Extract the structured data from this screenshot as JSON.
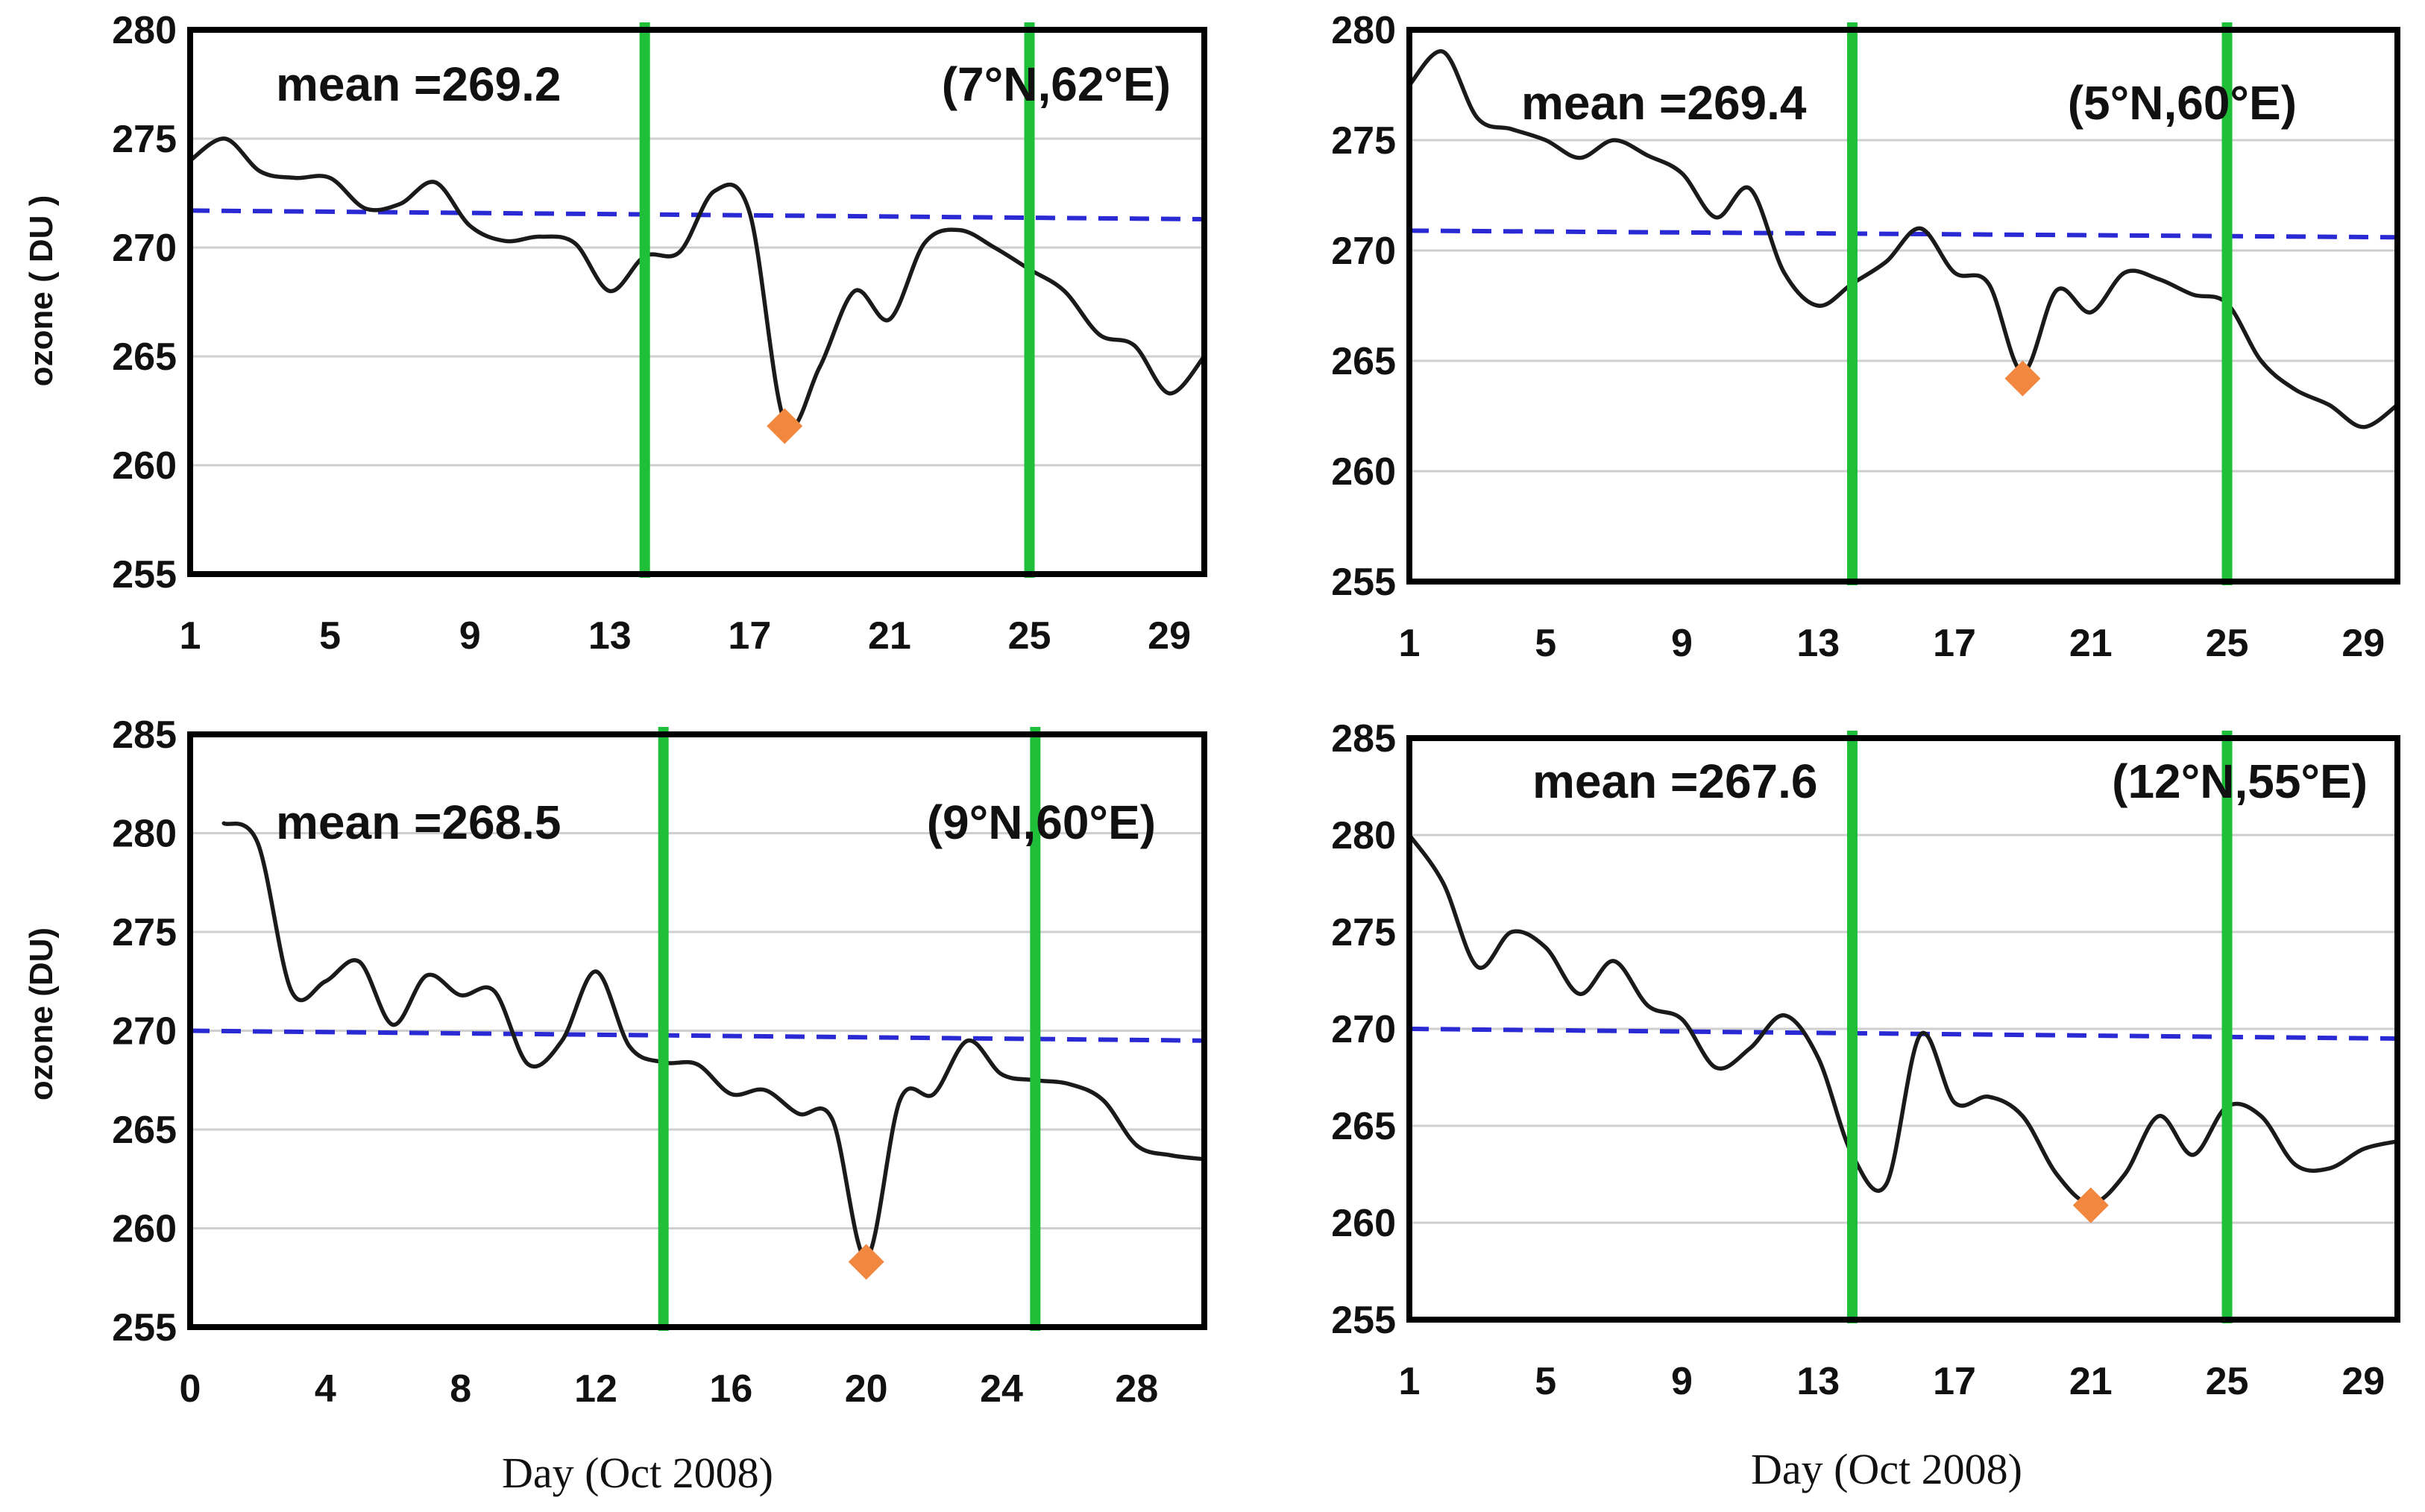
{
  "chart_data": [
    {
      "type": "line",
      "panel": "top-left",
      "mean_label": "mean =269.2",
      "location": "(7°N,62°E)",
      "ylabel": "ozone ( DU )",
      "xlabel": "",
      "xlim": [
        1,
        30
      ],
      "ylim": [
        255,
        280
      ],
      "yticks": [
        255,
        260,
        265,
        270,
        275,
        280
      ],
      "xticks": [
        1,
        5,
        9,
        13,
        17,
        21,
        25,
        29
      ],
      "series": {
        "name": "ozone",
        "x": [
          1,
          2,
          3,
          4,
          5,
          6,
          7,
          8,
          9,
          10,
          11,
          12,
          13,
          14,
          15,
          16,
          17,
          18,
          19,
          20,
          21,
          22,
          23,
          24,
          25,
          26,
          27,
          28,
          29,
          30
        ],
        "y": [
          274,
          275,
          273.5,
          273.2,
          273.2,
          271.8,
          272,
          273,
          271,
          270.3,
          270.5,
          270.2,
          268,
          269.6,
          269.8,
          272.6,
          271.6,
          262,
          264.5,
          268,
          266.7,
          270.2,
          270.8,
          270,
          269,
          268,
          266,
          265.5,
          263.3,
          265
        ]
      },
      "mean_line": [
        271.7,
        271.3
      ],
      "minimum": {
        "x": 18,
        "y": 261.8
      },
      "vlines": [
        14,
        25
      ]
    },
    {
      "type": "line",
      "panel": "top-right",
      "mean_label": "mean =269.4",
      "location": "(5°N,60°E)",
      "ylabel": "",
      "xlabel": "",
      "xlim": [
        1,
        30
      ],
      "ylim": [
        255,
        280
      ],
      "yticks": [
        255,
        260,
        265,
        270,
        275,
        280
      ],
      "xticks": [
        1,
        5,
        9,
        13,
        17,
        21,
        25,
        29
      ],
      "series": {
        "name": "ozone",
        "x": [
          1,
          2,
          3,
          4,
          5,
          6,
          7,
          8,
          9,
          10,
          11,
          12,
          13,
          14,
          15,
          16,
          17,
          18,
          19,
          20,
          21,
          22,
          23,
          24,
          25,
          26,
          27,
          28,
          29,
          30
        ],
        "y": [
          277.5,
          279,
          276,
          275.5,
          275,
          274.2,
          275,
          274.3,
          273.5,
          271.5,
          272.8,
          269,
          267.5,
          268.5,
          269.5,
          271,
          269,
          268.5,
          264.5,
          268.2,
          267.2,
          269,
          268.7,
          268,
          267.6,
          265,
          263.7,
          263,
          262,
          263
        ]
      },
      "mean_line": [
        270.9,
        270.6
      ],
      "minimum": {
        "x": 19,
        "y": 264.2
      },
      "vlines": [
        14,
        25
      ]
    },
    {
      "type": "line",
      "panel": "bottom-left",
      "mean_label": "mean =268.5",
      "location": "(9°N,60°E)",
      "ylabel": "ozone (DU)",
      "xlabel": "Day  (Oct 2008)",
      "xlim": [
        0,
        30
      ],
      "ylim": [
        255,
        285
      ],
      "yticks": [
        255,
        260,
        265,
        270,
        275,
        280,
        285
      ],
      "xticks": [
        0,
        4,
        8,
        12,
        16,
        20,
        24,
        28
      ],
      "series": {
        "name": "ozone",
        "x": [
          1,
          2,
          3,
          4,
          5,
          6,
          7,
          8,
          9,
          10,
          11,
          12,
          13,
          14,
          15,
          16,
          17,
          18,
          19,
          20,
          21,
          22,
          23,
          24,
          25,
          26,
          27,
          28,
          29,
          30
        ],
        "y": [
          280.5,
          279.5,
          272,
          272.5,
          273.5,
          270.3,
          272.8,
          271.8,
          272,
          268.3,
          269.5,
          273,
          269.2,
          268.4,
          268.3,
          266.8,
          267,
          265.8,
          265.5,
          258.5,
          266.5,
          266.8,
          269.5,
          267.8,
          267.5,
          267.3,
          266.5,
          264.2,
          263.7,
          263.5
        ]
      },
      "mean_line": [
        270.0,
        269.5
      ],
      "minimum": {
        "x": 20,
        "y": 258.3
      },
      "vlines": [
        14,
        25
      ]
    },
    {
      "type": "line",
      "panel": "bottom-right",
      "mean_label": "mean =267.6",
      "location": "(12°N,55°E)",
      "ylabel": "",
      "xlabel": "Day  (Oct 2008)",
      "xlim": [
        1,
        30
      ],
      "ylim": [
        255,
        285
      ],
      "yticks": [
        255,
        260,
        265,
        270,
        275,
        280,
        285
      ],
      "xticks": [
        1,
        5,
        9,
        13,
        17,
        21,
        25,
        29
      ],
      "series": {
        "name": "ozone",
        "x": [
          1,
          2,
          3,
          4,
          5,
          6,
          7,
          8,
          9,
          10,
          11,
          12,
          13,
          14,
          15,
          16,
          17,
          18,
          19,
          20,
          21,
          22,
          23,
          24,
          25,
          26,
          27,
          28,
          29,
          30
        ],
        "y": [
          280,
          277.5,
          273.2,
          275,
          274.2,
          271.8,
          273.5,
          271.2,
          270.5,
          268,
          269,
          270.7,
          268.5,
          263.5,
          262,
          269.7,
          266.2,
          266.5,
          265.5,
          262.5,
          261,
          262.5,
          265.5,
          263.5,
          266,
          265.5,
          263,
          262.8,
          263.8,
          264.2
        ]
      },
      "mean_line": [
        270.0,
        269.5
      ],
      "minimum": {
        "x": 21,
        "y": 260.9
      },
      "vlines": [
        14,
        25
      ]
    }
  ],
  "colors": {
    "series": "#1a1a1a",
    "mean": "#2a2ad4",
    "vline": "#1fbf3a",
    "marker": "#f2873f",
    "grid": "#cfcfcf",
    "axis": "#000000"
  }
}
